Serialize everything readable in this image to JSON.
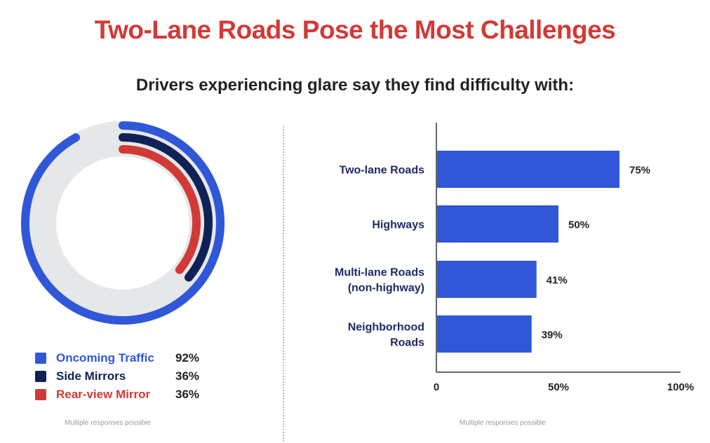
{
  "title": "Two-Lane Roads Pose the Most Challenges",
  "subtitle": "Drivers experiencing glare say they find difficulty with:",
  "chart_data": [
    {
      "type": "radial-bar",
      "series": [
        {
          "name": "Oncoming Traffic",
          "value": 92,
          "label": "92%",
          "color": "#2f57d8"
        },
        {
          "name": "Side Mirrors",
          "value": 36,
          "label": "36%",
          "color": "#0f2257"
        },
        {
          "name": "Rear-view Mirror",
          "value": 36,
          "label": "36%",
          "color": "#d23a37"
        }
      ],
      "max": 100,
      "track_color": "#e6e7e9",
      "note": "Multiple responses possible"
    },
    {
      "type": "bar",
      "orientation": "horizontal",
      "categories": [
        [
          "Two-lane Roads"
        ],
        [
          "Highways"
        ],
        [
          "Multi-lane Roads",
          "(non-highway)"
        ],
        [
          "Neighborhood",
          "Roads"
        ]
      ],
      "values": [
        75,
        50,
        41,
        39
      ],
      "value_labels": [
        "75%",
        "50%",
        "41%",
        "39%"
      ],
      "xlim": [
        0,
        100
      ],
      "xticks": [
        0,
        50,
        100
      ],
      "xtick_labels": [
        "0",
        "50%",
        "100%"
      ],
      "bar_color": "#2f57d8",
      "note": "Multiple responses possible"
    }
  ]
}
